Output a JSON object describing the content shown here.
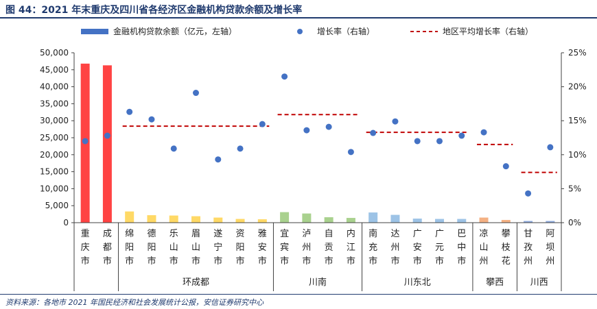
{
  "header": {
    "title": "图 44：2021 年末重庆及四川省各经济区金融机构贷款余额及增长率"
  },
  "source": "资料来源：各地市 2021 年国民经济和社会发展统计公报，安信证券研究中心",
  "chart_data": {
    "type": "bar",
    "legend": {
      "placement": "top",
      "bars_label": "金融机构贷款余额（亿元，左轴）",
      "dots_label": "增长率（右轴）",
      "dash_label": "地区平均增长率（右轴）"
    },
    "left_axis": {
      "ylim": [
        0,
        50000
      ],
      "ticks": [
        "0",
        "5,000",
        "10,000",
        "15,000",
        "20,000",
        "25,000",
        "30,000",
        "35,000",
        "40,000",
        "45,000",
        "50,000"
      ]
    },
    "right_axis": {
      "ylim": [
        0,
        25
      ],
      "ticks": [
        "0%",
        "5%",
        "10%",
        "15%",
        "20%",
        "25%"
      ]
    },
    "categories": [
      {
        "label": "重庆市",
        "loan": 46800,
        "growth": 12.0,
        "color": "#ff4343"
      },
      {
        "label": "成都市",
        "loan": 46300,
        "growth": 12.8,
        "color": "#ff4343"
      },
      {
        "label": "绵阳市",
        "loan": 3300,
        "growth": 16.3,
        "color": "#ffd966"
      },
      {
        "label": "德阳市",
        "loan": 2200,
        "growth": 15.2,
        "color": "#ffd966"
      },
      {
        "label": "乐山市",
        "loan": 2100,
        "growth": 10.9,
        "color": "#ffd966"
      },
      {
        "label": "眉山市",
        "loan": 1900,
        "growth": 19.1,
        "color": "#ffd966"
      },
      {
        "label": "遂宁市",
        "loan": 1500,
        "growth": 9.3,
        "color": "#ffd966"
      },
      {
        "label": "资阳市",
        "loan": 1100,
        "growth": 10.9,
        "color": "#ffd966"
      },
      {
        "label": "雅安市",
        "loan": 1000,
        "growth": 14.5,
        "color": "#ffd966"
      },
      {
        "label": "宜宾市",
        "loan": 3100,
        "growth": 21.5,
        "color": "#a9d18e"
      },
      {
        "label": "泸州市",
        "loan": 2700,
        "growth": 13.6,
        "color": "#a9d18e"
      },
      {
        "label": "自贡市",
        "loan": 1600,
        "growth": 14.1,
        "color": "#a9d18e"
      },
      {
        "label": "内江市",
        "loan": 1400,
        "growth": 10.4,
        "color": "#a9d18e"
      },
      {
        "label": "南充市",
        "loan": 3000,
        "growth": 13.2,
        "color": "#9dc3e6"
      },
      {
        "label": "达州市",
        "loan": 2300,
        "growth": 14.9,
        "color": "#9dc3e6"
      },
      {
        "label": "广安市",
        "loan": 1200,
        "growth": 12.0,
        "color": "#9dc3e6"
      },
      {
        "label": "广元市",
        "loan": 1100,
        "growth": 12.0,
        "color": "#9dc3e6"
      },
      {
        "label": "巴中市",
        "loan": 1100,
        "growth": 12.8,
        "color": "#9dc3e6"
      },
      {
        "label": "凉山州",
        "loan": 1500,
        "growth": 13.3,
        "color": "#f4b183"
      },
      {
        "label": "攀枝花",
        "loan": 800,
        "growth": 8.3,
        "color": "#f4b183"
      },
      {
        "label": "甘孜州",
        "loan": 500,
        "growth": 4.3,
        "color": "#8ea9db"
      },
      {
        "label": "阿坝州",
        "loan": 500,
        "growth": 11.1,
        "color": "#8ea9db"
      }
    ],
    "regions": [
      {
        "name": "环成都",
        "start": 2,
        "end": 8,
        "avg_growth": 14.2
      },
      {
        "name": "川南",
        "start": 9,
        "end": 12,
        "avg_growth": 15.9
      },
      {
        "name": "川东北",
        "start": 13,
        "end": 17,
        "avg_growth": 13.3
      },
      {
        "name": "攀西",
        "start": 18,
        "end": 19,
        "avg_growth": 11.5
      },
      {
        "name": "川西",
        "start": 20,
        "end": 21,
        "avg_growth": 7.4
      }
    ],
    "colors": {
      "dot": "#4472c4",
      "dash": "#c00000",
      "legend_bar": "#4472c4",
      "axis": "#404040"
    }
  }
}
